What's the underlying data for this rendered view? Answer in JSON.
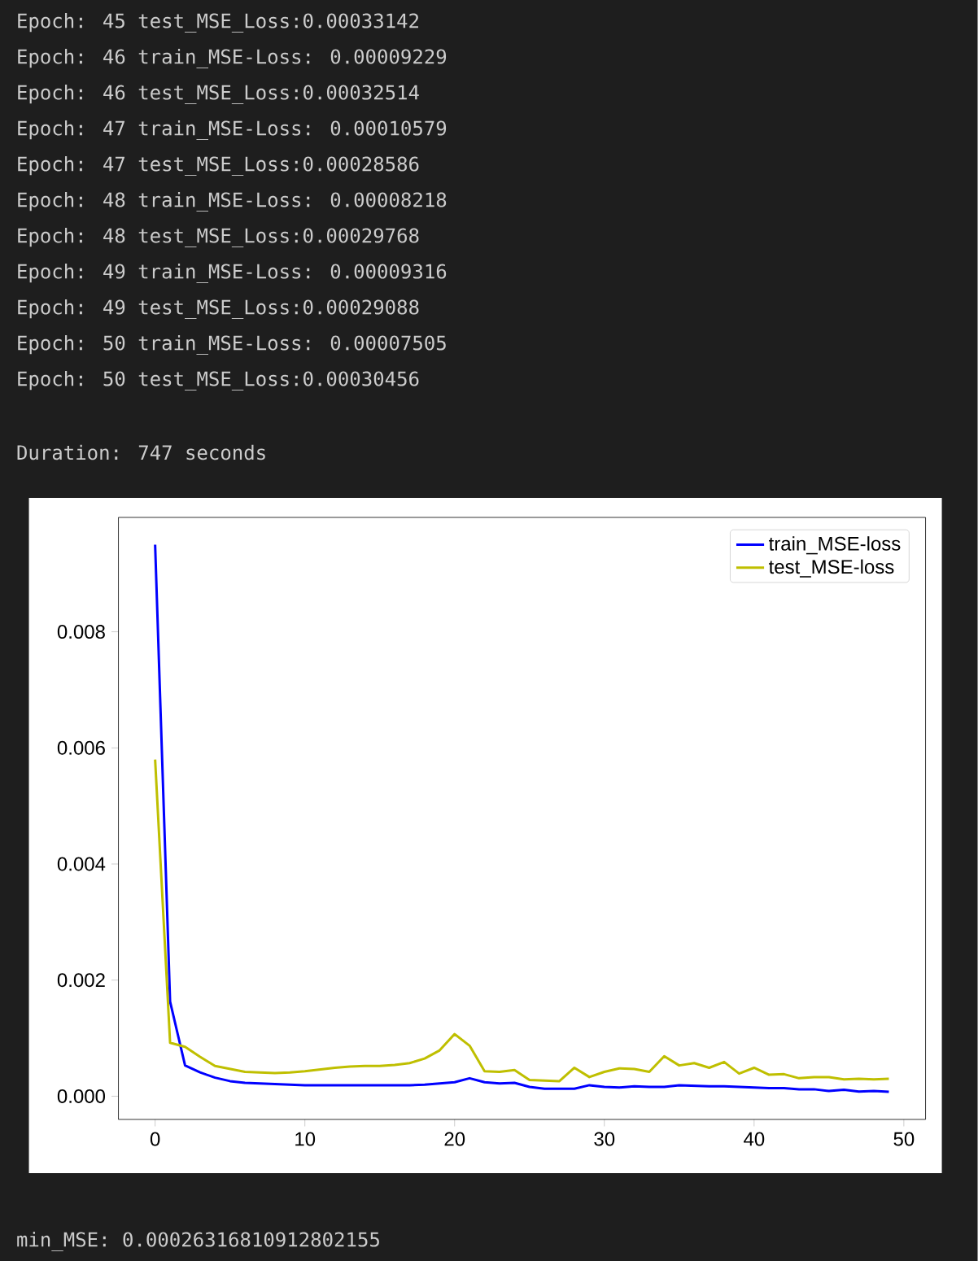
{
  "chart_data": {
    "type": "line",
    "x": [
      0,
      1,
      2,
      3,
      4,
      5,
      6,
      7,
      8,
      9,
      10,
      11,
      12,
      13,
      14,
      15,
      16,
      17,
      18,
      19,
      20,
      21,
      22,
      23,
      24,
      25,
      26,
      27,
      28,
      29,
      30,
      31,
      32,
      33,
      34,
      35,
      36,
      37,
      38,
      39,
      40,
      41,
      42,
      43,
      44,
      45,
      46,
      47,
      48,
      49
    ],
    "series": [
      {
        "name": "train_MSE-loss",
        "color": "#0000ff",
        "values": [
          0.0095,
          0.00163,
          0.00053,
          0.00041,
          0.00032,
          0.00026,
          0.00023,
          0.00022,
          0.00021,
          0.0002,
          0.00019,
          0.00019,
          0.00019,
          0.00019,
          0.00019,
          0.00019,
          0.00019,
          0.00019,
          0.0002,
          0.00022,
          0.00024,
          0.00031,
          0.00024,
          0.00022,
          0.00023,
          0.00016,
          0.00013,
          0.00013,
          0.00013,
          0.00019,
          0.00016,
          0.00015,
          0.00017,
          0.00016,
          0.00016,
          0.00019,
          0.00018,
          0.00017,
          0.00017,
          0.00016,
          0.00015,
          0.00014,
          0.00014,
          0.00012,
          0.00012,
          9e-05,
          0.00011,
          8e-05,
          9e-05,
          7.5e-05
        ]
      },
      {
        "name": "test_MSE-loss",
        "color": "#bfbf00",
        "values": [
          0.0058,
          0.00092,
          0.00085,
          0.00068,
          0.00052,
          0.00047,
          0.00042,
          0.00041,
          0.0004,
          0.00041,
          0.00043,
          0.00046,
          0.00049,
          0.00051,
          0.00052,
          0.00052,
          0.00054,
          0.00057,
          0.00065,
          0.00079,
          0.00107,
          0.00087,
          0.00043,
          0.00042,
          0.00045,
          0.00028,
          0.00027,
          0.00026,
          0.00049,
          0.00033,
          0.00042,
          0.00048,
          0.00047,
          0.00042,
          0.00069,
          0.00053,
          0.00057,
          0.00049,
          0.00059,
          0.00039,
          0.00049,
          0.00037,
          0.00038,
          0.00031,
          0.00033,
          0.00033,
          0.00029,
          0.0003,
          0.00029,
          0.0003
        ]
      }
    ],
    "xlim": [
      -2.45,
      51.45
    ],
    "ylim": [
      -0.0004,
      0.00997
    ],
    "xticks": [
      0,
      10,
      20,
      30,
      40,
      50
    ],
    "yticks": [
      {
        "value": 0,
        "label": "0.000"
      },
      {
        "value": 0.002,
        "label": "0.002"
      },
      {
        "value": 0.004,
        "label": "0.004"
      },
      {
        "value": 0.006,
        "label": "0.006"
      },
      {
        "value": 0.008,
        "label": "0.008"
      }
    ],
    "legend": "top right",
    "grid": false,
    "marker": "none",
    "line_style": "solid",
    "annotations": [
      "Epoch: 45 test_MSE_Loss:0.00033142",
      "Epoch: 46 train_MSE-Loss: 0.00009229",
      "Epoch: 46 test_MSE_Loss:0.00032514",
      "Epoch: 47 train_MSE-Loss: 0.00010579",
      "Epoch: 47 test_MSE_Loss:0.00028586",
      "Epoch: 48 train_MSE-Loss: 0.00008218",
      "Epoch: 48 test_MSE_Loss:0.00029768",
      "Epoch: 49 train_MSE-Loss: 0.00009316",
      "Epoch: 49 test_MSE_Loss:0.00029088",
      "Epoch: 50 train_MSE-Loss: 0.00007505",
      "Epoch: 50 test_MSE_Loss:0.00030456",
      "Duration: 747 seconds",
      "min_MSE: 0.00026316810912802155"
    ]
  }
}
